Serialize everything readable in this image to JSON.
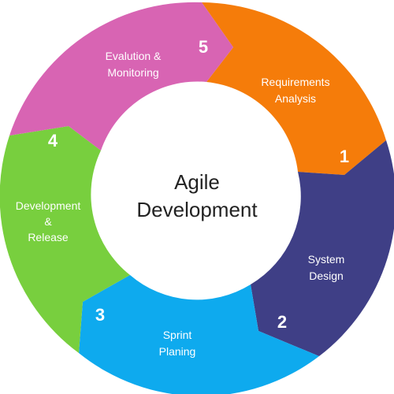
{
  "center": {
    "line1": "Agile",
    "line2": "Development"
  },
  "stages": [
    {
      "number": "1",
      "label_lines": [
        "Requirements",
        "Analysis"
      ],
      "color": "#f57c0a"
    },
    {
      "number": "2",
      "label_lines": [
        "System",
        "Design"
      ],
      "color": "#3f3f86"
    },
    {
      "number": "3",
      "label_lines": [
        "Sprint",
        "Planing"
      ],
      "color": "#0eaaee"
    },
    {
      "number": "4",
      "label_lines": [
        "Development",
        "&",
        "Release"
      ],
      "color": "#78cf3e"
    },
    {
      "number": "5",
      "label_lines": [
        "Evalution &",
        "Monitoring"
      ],
      "color": "#d864b3"
    }
  ]
}
